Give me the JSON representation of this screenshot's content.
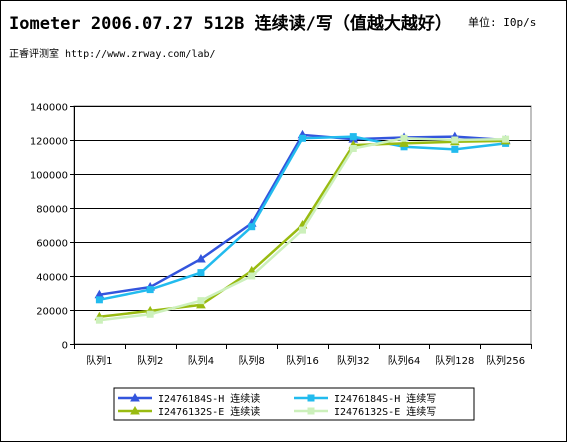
{
  "header": {
    "title": "Iometer 2006.07.27 512B 连续读/写（值越大越好）",
    "unit": "单位: I0p/s",
    "subtitle": "正睿评测室 http://www.zrway.com/lab/"
  },
  "chart_data": {
    "type": "line",
    "categories": [
      "队列1",
      "队列2",
      "队列4",
      "队列8",
      "队列16",
      "队列32",
      "队列64",
      "队列128",
      "队列256"
    ],
    "ylim": [
      0,
      140000
    ],
    "yticks": [
      0,
      20000,
      40000,
      60000,
      80000,
      100000,
      120000,
      140000
    ],
    "grid": true,
    "legend_position": "bottom",
    "series": [
      {
        "name": "I2476184S-H 连续读",
        "color": "#3355dd",
        "marker": "triangle",
        "values": [
          29000,
          33500,
          50000,
          71000,
          123000,
          120500,
          121500,
          122000,
          120000
        ]
      },
      {
        "name": "I2476184S-H 连续写",
        "color": "#22bbee",
        "marker": "square",
        "values": [
          26000,
          32000,
          42000,
          69000,
          121000,
          122000,
          116000,
          114500,
          118000
        ]
      },
      {
        "name": "I2476132S-E 连续读",
        "color": "#99bb11",
        "marker": "triangle",
        "values": [
          16000,
          19500,
          23000,
          43000,
          70000,
          117000,
          118000,
          119000,
          119500
        ]
      },
      {
        "name": "I2476132S-E 连续写",
        "color": "#ccf0bb",
        "marker": "square",
        "values": [
          14000,
          17500,
          25500,
          40000,
          67000,
          115000,
          121000,
          120000,
          120500
        ]
      }
    ]
  }
}
